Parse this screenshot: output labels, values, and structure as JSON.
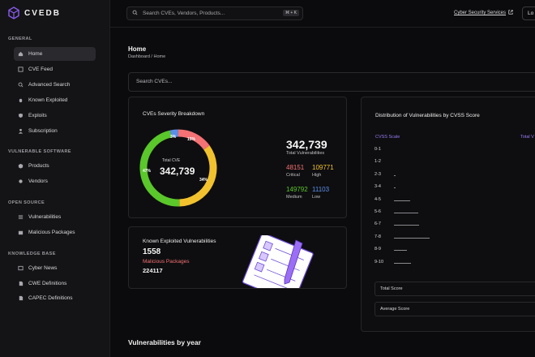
{
  "brand": {
    "name": "CVEDB"
  },
  "sidebar": {
    "sections": [
      {
        "title": "GENERAL",
        "items": [
          {
            "label": "Home",
            "icon": "home-icon",
            "active": true
          },
          {
            "label": "CVE Feed",
            "icon": "feed-icon"
          },
          {
            "label": "Advanced Search",
            "icon": "search-icon"
          },
          {
            "label": "Known Exploited",
            "icon": "bug-icon"
          },
          {
            "label": "Exploits",
            "icon": "shield-icon"
          },
          {
            "label": "Subscription",
            "icon": "user-icon"
          }
        ]
      },
      {
        "title": "VULNERABLE SOFTWARE",
        "items": [
          {
            "label": "Products",
            "icon": "box-icon"
          },
          {
            "label": "Vendors",
            "icon": "vendor-icon"
          }
        ]
      },
      {
        "title": "OPEN SOURCE",
        "items": [
          {
            "label": "Vulnerabilities",
            "icon": "list-icon"
          },
          {
            "label": "Malicious Packages",
            "icon": "package-icon"
          }
        ]
      },
      {
        "title": "KNOWLEDGE BASE",
        "items": [
          {
            "label": "Cyber News",
            "icon": "news-icon"
          },
          {
            "label": "CWE Definitions",
            "icon": "doc-icon"
          },
          {
            "label": "CAPEC Definitions",
            "icon": "doc-icon"
          }
        ]
      }
    ]
  },
  "topbar": {
    "search_placeholder": "Search CVEs, Vendors, Products...",
    "shortcut": "⌘ + K",
    "link": "Cyber Security Services",
    "button": "Lo"
  },
  "page": {
    "title": "Home",
    "breadcrumb": "Dashboard / Home",
    "search_placeholder": "Search CVEs..."
  },
  "severity": {
    "title": "CVEs Severity Breakdown",
    "center_label": "Total CVE",
    "center_value": "342,739",
    "total": "342,739",
    "total_label": "Total Vulnerabilities",
    "critical": "48151",
    "critical_label": "Critical",
    "high": "109771",
    "high_label": "High",
    "medium": "149792",
    "medium_label": "Medium",
    "low": "11103",
    "low_label": "Low",
    "pct_labels": {
      "low": "3%",
      "critical": "15%",
      "high": "34%",
      "medium": "47%"
    },
    "colors": {
      "critical": "#f47174",
      "high": "#f2c12e",
      "medium": "#5ac72a",
      "low": "#5a8fe8"
    }
  },
  "exploited": {
    "title": "Known Exploited Vulnerabilities",
    "count": "1558",
    "malicious_label": "Malicious Packages",
    "malicious_count": "224117"
  },
  "cvss": {
    "title": "Distribution of Vulnerabilities by CVSS Score",
    "col1": "CVSS Scale",
    "col2": "Total V",
    "rows": [
      {
        "label": "0-1",
        "fraction": 0.0
      },
      {
        "label": "1-2",
        "fraction": 0.0
      },
      {
        "label": "2-3",
        "fraction": 0.03
      },
      {
        "label": "3-4",
        "fraction": 0.03
      },
      {
        "label": "4-5",
        "fraction": 0.46
      },
      {
        "label": "5-6",
        "fraction": 0.69
      },
      {
        "label": "6-7",
        "fraction": 0.7
      },
      {
        "label": "7-8",
        "fraction": 1.0
      },
      {
        "label": "8-9",
        "fraction": 0.37
      },
      {
        "label": "9-10",
        "fraction": 0.47
      }
    ],
    "total_score_label": "Total Score",
    "average_score_label": "Average Score"
  },
  "year_section": {
    "title": "Vulnerabilities by year"
  }
}
